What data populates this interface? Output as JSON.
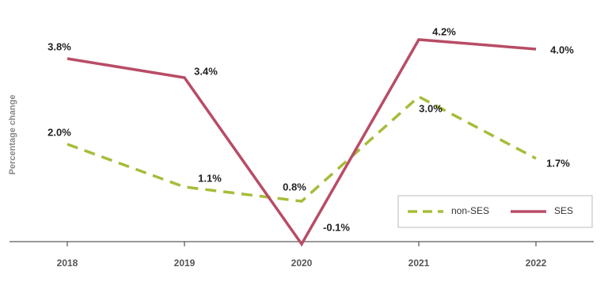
{
  "chart_data": {
    "type": "line",
    "y_label": "Percentage change",
    "categories": [
      "2018",
      "2019",
      "2020",
      "2021",
      "2022"
    ],
    "ylim": [
      -0.2,
      4.6
    ],
    "legend": "bottom-right",
    "series": [
      {
        "name": "non-SES",
        "color": "#a9bb3a",
        "dash": true,
        "values": [
          2.0,
          1.1,
          0.8,
          3.0,
          1.7
        ],
        "value_labels": [
          "2.0%",
          "1.1%",
          "0.8%",
          "3.0%",
          "1.7%"
        ]
      },
      {
        "name": "SES",
        "color": "#b84c66",
        "dash": false,
        "values": [
          3.8,
          3.4,
          -0.1,
          4.2,
          4.0
        ],
        "value_labels": [
          "3.8%",
          "3.4%",
          "-0.1%",
          "4.2%",
          "4.0%"
        ]
      }
    ]
  }
}
